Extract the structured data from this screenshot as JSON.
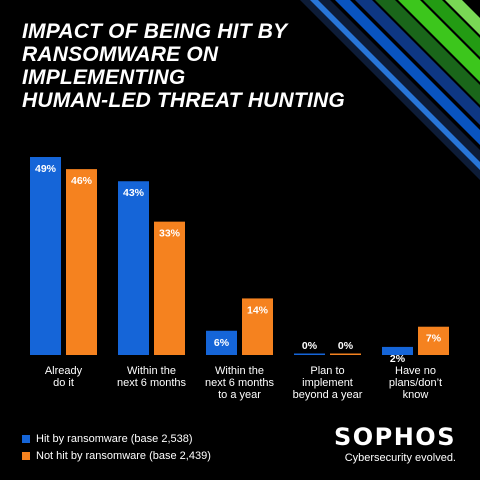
{
  "title_lines": [
    "IMPACT OF BEING HIT BY",
    "RANSOMWARE ON IMPLEMENTING",
    "HUMAN-LED THREAT HUNTING"
  ],
  "colors": {
    "hit": "#1565d8",
    "not_hit": "#f5821f",
    "background": "#000000",
    "accent_green": "#3fd11e",
    "accent_blue": "#0a58ca"
  },
  "chart_data": {
    "type": "bar",
    "categories": [
      [
        "Already",
        "do it"
      ],
      [
        "Within the",
        "next 6 months"
      ],
      [
        "Within the",
        "next 6 months",
        "to a year"
      ],
      [
        "Plan to",
        "implement",
        "beyond a year"
      ],
      [
        "Have no",
        "plans/don’t",
        "know"
      ]
    ],
    "series": [
      {
        "name": "Hit by ransomware (base 2,538)",
        "values": [
          49,
          43,
          6,
          0,
          2
        ],
        "labels": [
          "49%",
          "43%",
          "6%",
          "0%",
          "2%"
        ]
      },
      {
        "name": "Not hit by ransomware (base 2,439)",
        "values": [
          46,
          33,
          14,
          0,
          7
        ],
        "labels": [
          "46%",
          "33%",
          "14%",
          "0%",
          "7%"
        ]
      }
    ],
    "ylim": [
      0,
      49
    ]
  },
  "legend": [
    {
      "label": "Hit by ransomware (base 2,538)"
    },
    {
      "label": "Not hit by ransomware (base 2,439)"
    }
  ],
  "brand": {
    "name": "SOPHOS",
    "tagline": "Cybersecurity evolved."
  }
}
